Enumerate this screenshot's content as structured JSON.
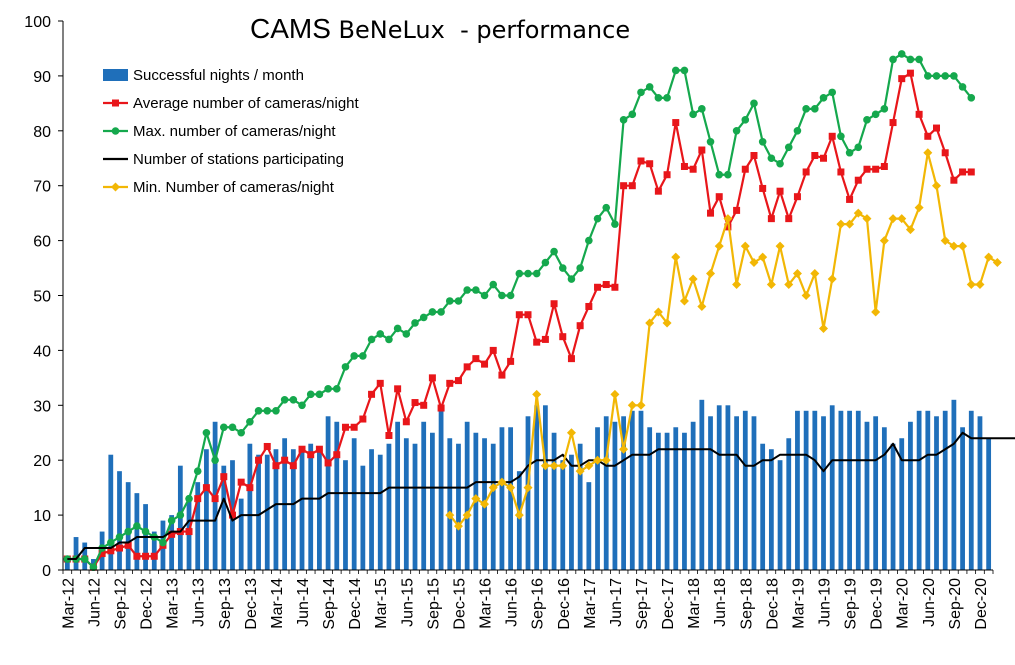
{
  "chart_data": {
    "type": "bar+line",
    "title": "CAMS BeNeLux  - performance",
    "title_parts": [
      "CAMS",
      " BeNeLux  - performance"
    ],
    "ylim": [
      0,
      100
    ],
    "yticks": [
      0,
      10,
      20,
      30,
      40,
      50,
      60,
      70,
      80,
      90,
      100
    ],
    "xlabel": "",
    "ylabel": "",
    "grid": false,
    "legend_position": "top-left",
    "x_start": "Mar-12",
    "x_end": "Dec-20",
    "tick_labels": [
      "Mar-12",
      "Jun-12",
      "Sep-12",
      "Dec-12",
      "Mar-13",
      "Jun-13",
      "Sep-13",
      "Dec-13",
      "Mar-14",
      "Jun-14",
      "Sep-14",
      "Dec-14",
      "Mar-15",
      "Jun-15",
      "Sep-15",
      "Dec-15",
      "Mar-16",
      "Jun-16",
      "Sep-16",
      "Dec-16",
      "Mar-17",
      "Jun-17",
      "Sep-17",
      "Dec-17",
      "Mar-18",
      "Jun-18",
      "Sep-18",
      "Dec-18",
      "Mar-19",
      "Jun-19",
      "Sep-19",
      "Dec-19",
      "Mar-20",
      "Jun-20",
      "Sep-20",
      "Dec-20"
    ],
    "series": [
      {
        "name": "Successful nights / month",
        "kind": "bar",
        "color": "#1f6fba",
        "values": [
          2,
          6,
          5,
          2,
          7,
          21,
          18,
          16,
          14,
          12,
          7,
          9,
          10,
          19,
          13,
          16,
          22,
          27,
          19,
          20,
          13,
          23,
          21,
          21,
          22,
          24,
          22,
          22,
          23,
          22,
          28,
          27,
          20,
          24,
          19,
          22,
          21,
          23,
          27,
          24,
          23,
          27,
          25,
          29,
          24,
          23,
          27,
          25,
          24,
          23,
          26,
          26,
          18,
          28,
          30,
          30,
          25,
          20,
          21,
          23,
          16,
          26,
          28,
          27,
          28,
          29,
          29,
          26,
          25,
          25,
          26,
          25,
          27,
          31,
          28,
          30,
          30,
          28,
          29,
          28,
          23,
          22,
          20,
          24,
          29,
          29,
          29,
          28,
          30,
          29,
          29,
          29,
          27,
          28,
          26,
          23,
          24,
          27,
          29,
          29,
          28,
          29,
          31,
          26,
          29,
          28,
          24
        ]
      },
      {
        "name": "Average number of cameras/night",
        "kind": "line",
        "color": "#e8161a",
        "marker": "square",
        "values": [
          2,
          2,
          2,
          0.5,
          3,
          3.5,
          4,
          4.5,
          2.5,
          2.5,
          2.5,
          4.5,
          6.5,
          7,
          7,
          13,
          15,
          13,
          17,
          10,
          16,
          15,
          20,
          22.5,
          19,
          20,
          19,
          22,
          21,
          22,
          19.5,
          21,
          26,
          26,
          27.5,
          32,
          34,
          24.5,
          33,
          27,
          30.5,
          30,
          35,
          29.5,
          34,
          34.5,
          37,
          38.5,
          37.5,
          40,
          35.5,
          38,
          46.5,
          46.5,
          41.5,
          42,
          48.5,
          42.5,
          38.5,
          44.5,
          48,
          51.5,
          52,
          51.5,
          70,
          70,
          74.5,
          74,
          69,
          72,
          81.5,
          73.5,
          73,
          76.5,
          65,
          68,
          62.5,
          65.5,
          73,
          75.5,
          69.5,
          64,
          69,
          64,
          68,
          72.5,
          75.5,
          75,
          79,
          72.5,
          67.5,
          71,
          73,
          73,
          73.5,
          81.5,
          89.5,
          90.5,
          83,
          79,
          80.5,
          76,
          71,
          72.5,
          72.5
        ]
      },
      {
        "name": "Max. number of cameras/night",
        "kind": "line",
        "color": "#15a84d",
        "marker": "circle",
        "values": [
          2,
          2,
          2,
          0.5,
          4,
          5,
          6,
          7,
          8,
          7,
          6,
          5,
          9,
          10,
          13,
          18,
          25,
          20,
          26,
          26,
          25,
          27,
          29,
          29,
          29,
          31,
          31,
          30,
          32,
          32,
          33,
          33,
          37,
          39,
          39,
          42,
          43,
          42,
          44,
          43,
          45,
          46,
          47,
          47,
          49,
          49,
          51,
          51,
          50,
          52,
          50,
          50,
          54,
          54,
          54,
          56,
          58,
          55,
          53,
          55,
          60,
          64,
          66,
          63,
          82,
          83,
          87,
          88,
          86,
          86,
          91,
          91,
          83,
          84,
          78,
          72,
          72,
          80,
          82,
          85,
          78,
          75,
          74,
          77,
          80,
          84,
          84,
          86,
          87,
          79,
          76,
          77,
          82,
          83,
          84,
          93,
          94,
          93,
          93,
          90,
          90,
          90,
          90,
          88,
          86
        ]
      },
      {
        "name": "Number of stations participating",
        "kind": "line",
        "color": "#000000",
        "marker": "none",
        "values": [
          2,
          2,
          4,
          4,
          4,
          4,
          5,
          5,
          6,
          6,
          6,
          6,
          7,
          7,
          9,
          9,
          9,
          9,
          13,
          9,
          10,
          10,
          10,
          11,
          12,
          12,
          12,
          13,
          13,
          13,
          14,
          14,
          14,
          14,
          14,
          14,
          14,
          15,
          15,
          15,
          15,
          15,
          15,
          15,
          15,
          15,
          15,
          16,
          16,
          16,
          16,
          16,
          17,
          19,
          20,
          20,
          20,
          21,
          19,
          19,
          20,
          20,
          19,
          19,
          20,
          21,
          21,
          21,
          22,
          22,
          22,
          22,
          22,
          22,
          22,
          21,
          21,
          21,
          19,
          19,
          20,
          20,
          21,
          21,
          21,
          21,
          20,
          18,
          20,
          20,
          20,
          20,
          20,
          20,
          21,
          23,
          20,
          20,
          20,
          21,
          21,
          22,
          23,
          25,
          24,
          24,
          24,
          24,
          24,
          24,
          24,
          23,
          23,
          23,
          24
        ]
      },
      {
        "name": "Min. Number of cameras/night",
        "kind": "line",
        "color": "#f2b705",
        "marker": "diamond",
        "start_index": 44,
        "values": [
          10,
          8,
          10,
          13,
          12,
          15,
          16,
          15,
          10,
          15,
          32,
          19,
          19,
          19,
          25,
          18,
          19,
          20,
          20,
          32,
          22,
          30,
          30,
          45,
          47,
          45,
          57,
          49,
          53,
          48,
          54,
          59,
          64,
          52,
          59,
          56,
          57,
          52,
          59,
          52,
          54,
          50,
          54,
          44,
          53,
          63,
          63,
          65,
          64,
          47,
          60,
          64,
          64,
          62,
          66,
          76,
          70,
          60,
          59,
          59,
          52,
          52,
          57,
          56
        ]
      }
    ]
  }
}
